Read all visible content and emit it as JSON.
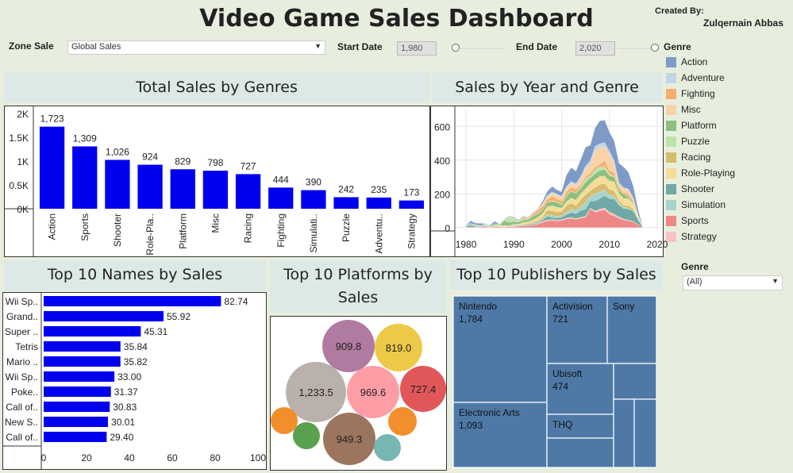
{
  "header": {
    "title": "Video Game Sales Dashboard",
    "created_by_label": "Created By:",
    "created_by_name": "Zulqernain Abbas"
  },
  "controls": {
    "zone_label": "Zone Sale",
    "zone_value": "Global Sales",
    "start_label": "Start Date",
    "start_value": "1,980",
    "end_label": "End Date",
    "end_value": "2,020"
  },
  "genre_filter": {
    "label": "Genre",
    "value": "(All)"
  },
  "legend": {
    "title": "Genre",
    "items": [
      {
        "name": "Action",
        "color": "#7e9bc8"
      },
      {
        "name": "Adventure",
        "color": "#c2d5ea"
      },
      {
        "name": "Fighting",
        "color": "#f5ae6b"
      },
      {
        "name": "Misc",
        "color": "#f9d3a7"
      },
      {
        "name": "Platform",
        "color": "#8dc080"
      },
      {
        "name": "Puzzle",
        "color": "#bde3ad"
      },
      {
        "name": "Racing",
        "color": "#d6bd6c"
      },
      {
        "name": "Role-Playing",
        "color": "#f5dd97"
      },
      {
        "name": "Shooter",
        "color": "#6fa8a4"
      },
      {
        "name": "Simulation",
        "color": "#abd3ce"
      },
      {
        "name": "Sports",
        "color": "#ee8886"
      },
      {
        "name": "Strategy",
        "color": "#f8c2c1"
      }
    ]
  },
  "chart_data": [
    {
      "type": "bar",
      "title": "Total Sales by Genres",
      "categories": [
        "Action",
        "Sports",
        "Shooter",
        "Role-Pla..",
        "Platform",
        "Misc",
        "Racing",
        "Fighting",
        "Simulati..",
        "Puzzle",
        "Adventu..",
        "Strategy"
      ],
      "values": [
        1723,
        1309,
        1026,
        924,
        829,
        798,
        727,
        444,
        390,
        242,
        235,
        173
      ],
      "value_labels": [
        "1,723",
        "1,309",
        "1,026",
        "924",
        "829",
        "798",
        "727",
        "444",
        "390",
        "242",
        "235",
        "173"
      ],
      "yticks": [
        0,
        500,
        1000,
        1500,
        2000
      ],
      "ytick_labels": [
        "0K",
        "0.5K",
        "1K",
        "1.5K",
        "2K"
      ],
      "ylim": [
        0,
        2000
      ],
      "color": "#0000ee"
    },
    {
      "type": "area",
      "title": "Sales by  Year and Genre",
      "x": [
        1980,
        1981,
        1982,
        1983,
        1984,
        1985,
        1986,
        1987,
        1988,
        1989,
        1990,
        1991,
        1992,
        1993,
        1994,
        1995,
        1996,
        1997,
        1998,
        1999,
        2000,
        2001,
        2002,
        2003,
        2004,
        2005,
        2006,
        2007,
        2008,
        2009,
        2010,
        2011,
        2012,
        2013,
        2014,
        2015,
        2016,
        2017
      ],
      "xticks": [
        1980,
        1990,
        2000,
        2010,
        2020
      ],
      "yticks": [
        0,
        200,
        400,
        600
      ],
      "xlim": [
        1978,
        2021
      ],
      "ylim": [
        -20,
        700
      ],
      "stack_order": [
        "Sports",
        "Strategy",
        "Shooter",
        "Simulation",
        "Racing",
        "Role-Playing",
        "Platform",
        "Puzzle",
        "Fighting",
        "Misc",
        "Adventure",
        "Action"
      ],
      "series": [
        {
          "name": "Sports",
          "values": [
            1,
            4,
            2,
            3,
            6,
            2,
            6,
            4,
            3,
            5,
            6,
            8,
            10,
            12,
            14,
            20,
            30,
            40,
            42,
            40,
            42,
            50,
            55,
            48,
            56,
            60,
            110,
            90,
            100,
            105,
            80,
            70,
            55,
            45,
            40,
            35,
            15,
            1
          ]
        },
        {
          "name": "Strategy",
          "values": [
            0,
            0,
            0,
            0,
            0,
            0,
            0,
            0,
            0,
            0,
            0,
            1,
            1,
            2,
            2,
            4,
            6,
            6,
            6,
            5,
            5,
            6,
            6,
            5,
            6,
            7,
            6,
            10,
            10,
            12,
            12,
            10,
            8,
            6,
            4,
            3,
            2,
            0
          ]
        },
        {
          "name": "Shooter",
          "values": [
            7,
            10,
            4,
            2,
            3,
            1,
            2,
            2,
            1,
            1,
            2,
            4,
            3,
            5,
            6,
            4,
            8,
            20,
            12,
            12,
            14,
            20,
            28,
            30,
            40,
            42,
            42,
            58,
            62,
            72,
            78,
            90,
            70,
            62,
            66,
            60,
            30,
            1
          ]
        },
        {
          "name": "Simulation",
          "values": [
            0,
            0,
            0,
            1,
            0,
            0,
            0,
            1,
            0,
            0,
            2,
            1,
            1,
            2,
            4,
            4,
            5,
            12,
            12,
            10,
            12,
            15,
            22,
            18,
            22,
            44,
            28,
            45,
            40,
            36,
            22,
            18,
            12,
            8,
            6,
            5,
            2,
            0
          ]
        },
        {
          "name": "Racing",
          "values": [
            0,
            1,
            1,
            0,
            5,
            0,
            2,
            1,
            3,
            1,
            4,
            2,
            4,
            4,
            7,
            10,
            12,
            25,
            28,
            26,
            22,
            38,
            34,
            30,
            42,
            43,
            32,
            36,
            44,
            36,
            34,
            30,
            16,
            12,
            14,
            8,
            4,
            0
          ]
        },
        {
          "name": "Role-Playing",
          "values": [
            0,
            0,
            0,
            0,
            0,
            1,
            4,
            4,
            6,
            3,
            6,
            4,
            12,
            8,
            12,
            18,
            22,
            20,
            30,
            28,
            20,
            24,
            30,
            32,
            35,
            34,
            42,
            46,
            48,
            44,
            52,
            54,
            40,
            40,
            42,
            28,
            12,
            0
          ]
        },
        {
          "name": "Platform",
          "values": [
            0,
            7,
            5,
            6,
            1,
            4,
            9,
            1,
            28,
            21,
            16,
            13,
            15,
            15,
            22,
            22,
            20,
            26,
            26,
            30,
            20,
            34,
            40,
            40,
            32,
            38,
            35,
            34,
            35,
            40,
            30,
            28,
            20,
            25,
            10,
            8,
            3,
            0
          ]
        },
        {
          "name": "Puzzle",
          "values": [
            0,
            2,
            3,
            1,
            4,
            3,
            0,
            0,
            6,
            36,
            16,
            4,
            5,
            3,
            2,
            6,
            1,
            2,
            4,
            3,
            3,
            4,
            3,
            1,
            8,
            20,
            10,
            24,
            20,
            18,
            12,
            4,
            2,
            1,
            1,
            1,
            0,
            0
          ]
        },
        {
          "name": "Fighting",
          "values": [
            1,
            0,
            0,
            0,
            0,
            1,
            0,
            4,
            0,
            0,
            0,
            0,
            10,
            6,
            12,
            14,
            22,
            16,
            26,
            16,
            20,
            18,
            22,
            20,
            14,
            14,
            18,
            16,
            16,
            36,
            18,
            20,
            14,
            8,
            16,
            8,
            4,
            0
          ]
        },
        {
          "name": "Misc",
          "values": [
            1,
            1,
            1,
            0,
            1,
            0,
            0,
            0,
            0,
            1,
            4,
            0,
            4,
            1,
            3,
            6,
            12,
            18,
            18,
            22,
            22,
            26,
            24,
            24,
            38,
            48,
            56,
            98,
            98,
            84,
            98,
            56,
            22,
            24,
            24,
            12,
            2,
            0
          ]
        },
        {
          "name": "Adventure",
          "values": [
            0,
            0,
            0,
            0,
            0,
            0,
            0,
            1,
            0,
            0,
            0,
            3,
            0,
            1,
            4,
            2,
            4,
            5,
            8,
            8,
            6,
            8,
            10,
            12,
            10,
            16,
            18,
            26,
            24,
            22,
            18,
            16,
            6,
            6,
            6,
            8,
            2,
            0
          ]
        },
        {
          "name": "Action",
          "values": [
            1,
            15,
            10,
            12,
            3,
            3,
            14,
            2,
            2,
            2,
            6,
            5,
            3,
            2,
            2,
            2,
            12,
            24,
            32,
            24,
            26,
            68,
            82,
            75,
            101,
            110,
            91,
            108,
            136,
            132,
            112,
            118,
            116,
            122,
            98,
            68,
            30,
            0
          ]
        }
      ]
    },
    {
      "type": "bar",
      "title": "Top 10 Names by Sales",
      "orientation": "horizontal",
      "categories": [
        "Wii Sp..",
        "Grand..",
        "Super ..",
        "Tetris",
        "Mario ..",
        "Wii Sp..",
        "Poke..",
        "Call of..",
        "New S..",
        "Call of.."
      ],
      "values": [
        82.74,
        55.92,
        45.31,
        35.84,
        35.82,
        33.0,
        31.37,
        30.83,
        30.01,
        29.4
      ],
      "value_labels": [
        "82.74",
        "55.92",
        "45.31",
        "35.84",
        "35.82",
        "33.00",
        "31.37",
        "30.83",
        "30.01",
        "29.40"
      ],
      "xticks": [
        0,
        20,
        40,
        60,
        80,
        100
      ],
      "xlim": [
        0,
        100
      ],
      "color": "#0000ee"
    },
    {
      "type": "bubble",
      "title": "Top 10 Platforms by Sales",
      "values": [
        1233.5,
        969.6,
        949.3,
        909.8,
        819.0,
        727.4,
        250,
        220,
        200,
        180
      ],
      "value_labels": [
        "1,233.5",
        "969.6",
        "949.3",
        "909.8",
        "819.0",
        "727.4",
        "",
        "",
        "",
        ""
      ],
      "colors": [
        "#bab0ac",
        "#ff9da7",
        "#9c755f",
        "#b07aa1",
        "#edc948",
        "#e15759",
        "#f28e2b",
        "#59a14f",
        "#76b7b2",
        "#f28e2b"
      ]
    },
    {
      "type": "treemap",
      "title": "Top 10 Publishers by Sales",
      "items": [
        {
          "name": "Nintendo",
          "value": 1784,
          "label": "1,784"
        },
        {
          "name": "Electronic Arts",
          "value": 1093,
          "label": "1,093"
        },
        {
          "name": "Activision",
          "value": 721,
          "label": "721"
        },
        {
          "name": "Sony",
          "value": 600,
          "label": ""
        },
        {
          "name": "Ubisoft",
          "value": 474,
          "label": "474"
        },
        {
          "name": "THQ",
          "value": 340,
          "label": ""
        },
        {
          "name": "",
          "value": 300,
          "label": ""
        },
        {
          "name": "",
          "value": 280,
          "label": ""
        },
        {
          "name": "",
          "value": 250,
          "label": ""
        },
        {
          "name": "",
          "value": 240,
          "label": ""
        }
      ],
      "color": "#4e79a7"
    }
  ]
}
